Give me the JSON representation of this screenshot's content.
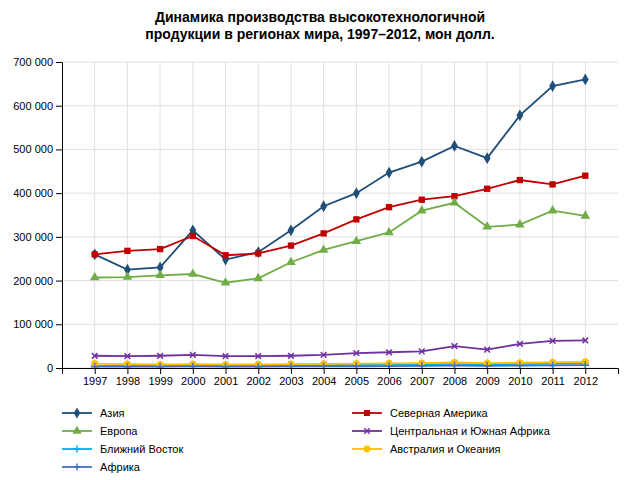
{
  "chart_data": {
    "type": "line",
    "title": "Динамика производства высокотехнологичной\nпродукции в регионах  мира, 1997–2012, мон долл.",
    "x": [
      1997,
      1998,
      1999,
      2000,
      2001,
      2002,
      2003,
      2004,
      2005,
      2006,
      2007,
      2008,
      2009,
      2010,
      2011,
      2012
    ],
    "xlim": [
      1996,
      2013
    ],
    "xticks": [
      1997,
      1998,
      1999,
      2000,
      2001,
      2002,
      2003,
      2004,
      2005,
      2006,
      2007,
      2008,
      2009,
      2010,
      2011,
      2012
    ],
    "ylim": [
      0,
      700000
    ],
    "yticks": [
      0,
      {
        "value": 100000,
        "label": "100 000"
      },
      {
        "value": 200000,
        "label": "200 000"
      },
      {
        "value": 300000,
        "label": "300 000"
      },
      {
        "value": 400000,
        "label": "400 000"
      },
      {
        "value": 500000,
        "label": "500 000"
      },
      {
        "value": 600000,
        "label": "600 000"
      },
      {
        "value": 700000,
        "label": "700 000"
      }
    ],
    "grid": true,
    "legend": "bottom",
    "series": [
      {
        "name": "Азия",
        "color": "#1F4E79",
        "marker": "diamond",
        "values": [
          260000,
          225000,
          230000,
          315000,
          248000,
          265000,
          315000,
          370000,
          400000,
          447000,
          472000,
          508000,
          480000,
          578000,
          645000,
          660000
        ]
      },
      {
        "name": "Северная Америка",
        "color": "#C00000",
        "marker": "square",
        "values": [
          260000,
          268000,
          272000,
          302000,
          258000,
          262000,
          280000,
          308000,
          340000,
          368000,
          385000,
          393000,
          410000,
          430000,
          420000,
          440000
        ]
      },
      {
        "name": "Европа",
        "color": "#70AD47",
        "marker": "triangle",
        "values": [
          207000,
          208000,
          212000,
          215000,
          195000,
          205000,
          242000,
          270000,
          290000,
          310000,
          360000,
          378000,
          323000,
          328000,
          360000,
          348000
        ]
      },
      {
        "name": "Центральная и Южная Африка",
        "color": "#7030A0",
        "marker": "x",
        "values": [
          28000,
          27000,
          28000,
          30000,
          27000,
          27000,
          28000,
          30000,
          34000,
          36000,
          38000,
          50000,
          42000,
          55000,
          62000,
          63000
        ]
      },
      {
        "name": "Ближний Восток",
        "color": "#00B0F0",
        "marker": "plus",
        "values": [
          5000,
          5000,
          5000,
          5500,
          5000,
          5500,
          6000,
          6500,
          7000,
          7500,
          8000,
          9000,
          8500,
          9000,
          10000,
          10500
        ]
      },
      {
        "name": "Австралия и Океания",
        "color": "#FFC000",
        "marker": "circle",
        "values": [
          10000,
          9000,
          8000,
          9000,
          8000,
          8500,
          9000,
          9500,
          10000,
          10500,
          11000,
          13000,
          11000,
          12000,
          13000,
          14000
        ]
      },
      {
        "name": "Африка",
        "color": "#4472C4",
        "marker": "plus",
        "values": [
          3000,
          3000,
          3000,
          3500,
          3000,
          3000,
          3500,
          4000,
          4000,
          4500,
          5000,
          5500,
          5000,
          5500,
          6000,
          6500
        ]
      }
    ]
  }
}
